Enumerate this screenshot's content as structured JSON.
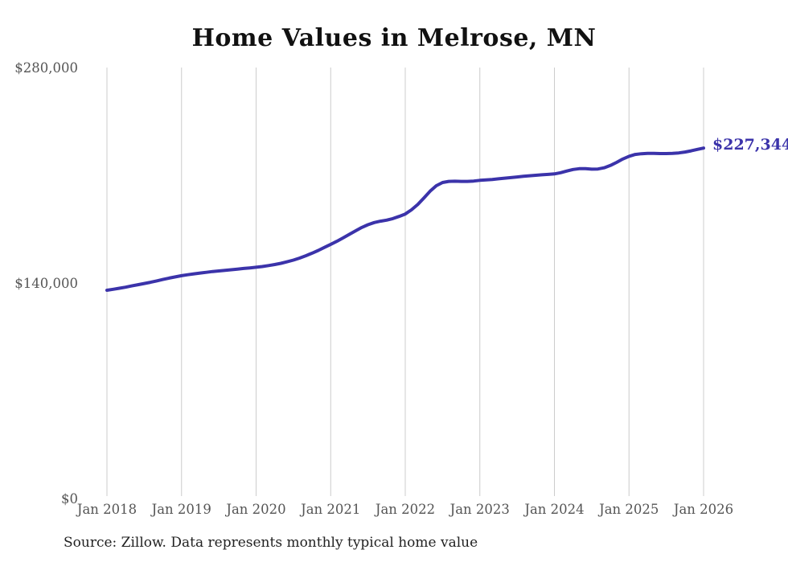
{
  "title": "Home Values in Melrose, MN",
  "latest_value_label": "$227,344",
  "source_note": "Source: Zillow. Data represents monthly typical home value",
  "colors": {
    "line": "#3b33aa",
    "grid": "#cccccc",
    "axis_text": "#555555",
    "title_text": "#111111",
    "latest_label_text": "#3b33aa",
    "background": "#ffffff"
  },
  "chart_data": {
    "type": "line",
    "title": "Home Values in Melrose, MN",
    "xlabel": "",
    "ylabel": "",
    "unit": "USD",
    "frequency": "monthly",
    "x_start": "Jan 2018",
    "x_end": "Jan 2026",
    "x_tick_labels": [
      "Jan 2018",
      "Jan 2019",
      "Jan 2020",
      "Jan 2021",
      "Jan 2022",
      "Jan 2023",
      "Jan 2024",
      "Jan 2025",
      "Jan 2026"
    ],
    "y_tick_labels": [
      "$0",
      "$140,000",
      "$280,000"
    ],
    "ylim": [
      0,
      280000
    ],
    "grid": "vertical-only",
    "legend": "none",
    "final_value": 227344,
    "values": [
      134500,
      135100,
      135800,
      136500,
      137300,
      138100,
      138900,
      139700,
      140600,
      141500,
      142400,
      143200,
      144000,
      144600,
      145200,
      145700,
      146200,
      146700,
      147100,
      147500,
      147900,
      148300,
      148700,
      149100,
      149500,
      150000,
      150600,
      151300,
      152100,
      153100,
      154200,
      155500,
      157000,
      158700,
      160500,
      162500,
      164500,
      166500,
      168700,
      171000,
      173300,
      175500,
      177300,
      178700,
      179600,
      180300,
      181300,
      182700,
      184300,
      187000,
      190500,
      194800,
      199200,
      202800,
      204900,
      205600,
      205700,
      205600,
      205600,
      205800,
      206300,
      206600,
      206900,
      207300,
      207700,
      208100,
      208500,
      208900,
      209300,
      209600,
      209900,
      210200,
      210500,
      211300,
      212400,
      213400,
      213900,
      213900,
      213600,
      213700,
      214500,
      216000,
      218000,
      220200,
      222000,
      223200,
      223700,
      223900,
      223900,
      223800,
      223800,
      223900,
      224200,
      224800,
      225600,
      226500,
      227344
    ]
  }
}
